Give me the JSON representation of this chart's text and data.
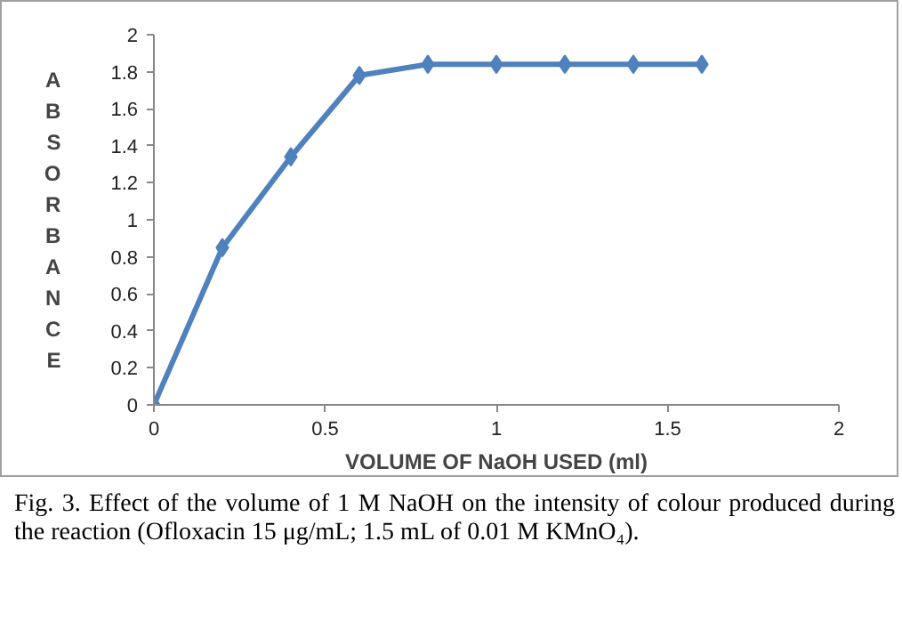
{
  "chart_data": {
    "type": "line",
    "xlabel": "VOLUME OF NaOH USED (ml)",
    "ylabel": "ABSORBANCE",
    "x": [
      0,
      0.2,
      0.4,
      0.6,
      0.8,
      1.0,
      1.2,
      1.4,
      1.6
    ],
    "series": [
      {
        "color": "#4f81bd",
        "values": [
          0,
          0.85,
          1.34,
          1.78,
          1.84,
          1.84,
          1.84,
          1.84,
          1.84
        ]
      }
    ],
    "xlim": [
      0,
      2
    ],
    "xticks": [
      0,
      0.5,
      1,
      1.5,
      2
    ],
    "ylim": [
      0,
      2
    ],
    "yticks": [
      0,
      0.2,
      0.4,
      0.6,
      0.8,
      1,
      1.2,
      1.4,
      1.6,
      1.8,
      2
    ],
    "marker": "diamond",
    "line_style": "solid",
    "grid": false,
    "annotations": [
      "Fig. 3. Effect of the volume of 1 M NaOH on the intensity of colour produced during the reaction (Ofloxacin 15 μg/mL; 1.5 mL of 0.01 M KMnO₄)."
    ]
  }
}
